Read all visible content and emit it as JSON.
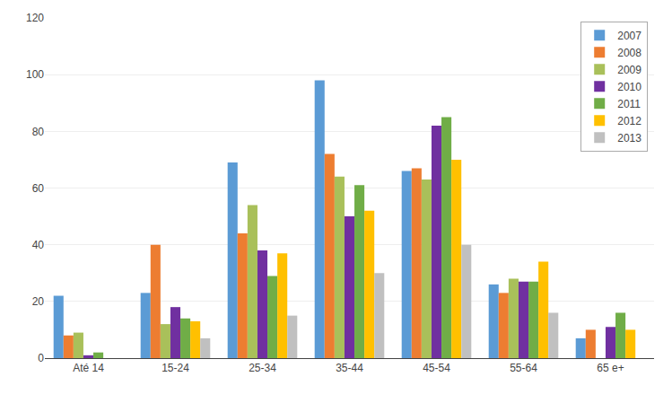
{
  "chart_data": {
    "type": "bar",
    "categories": [
      "Até 14",
      "15-24",
      "25-34",
      "35-44",
      "45-54",
      "55-64",
      "65 e+"
    ],
    "series": [
      {
        "name": "2007",
        "color": "#5B9BD5",
        "values": [
          22,
          23,
          69,
          98,
          66,
          26,
          7
        ]
      },
      {
        "name": "2008",
        "color": "#ED7D31",
        "values": [
          8,
          40,
          44,
          72,
          67,
          23,
          10
        ]
      },
      {
        "name": "2009",
        "color": "#A9C05A",
        "values": [
          9,
          12,
          54,
          64,
          63,
          28,
          0
        ]
      },
      {
        "name": "2010",
        "color": "#7030A0",
        "values": [
          1,
          18,
          38,
          50,
          82,
          27,
          11
        ]
      },
      {
        "name": "2011",
        "color": "#70AD47",
        "values": [
          2,
          14,
          29,
          61,
          85,
          27,
          16
        ]
      },
      {
        "name": "2012",
        "color": "#FFC000",
        "values": [
          0,
          13,
          37,
          52,
          70,
          34,
          10
        ]
      },
      {
        "name": "2013",
        "color": "#C0C0C0",
        "values": [
          0,
          7,
          15,
          30,
          40,
          16,
          0
        ]
      }
    ],
    "ylim": [
      0,
      120
    ],
    "yticks": [
      0,
      20,
      40,
      60,
      80,
      100,
      120
    ],
    "grid": true,
    "legend": "upper right"
  }
}
